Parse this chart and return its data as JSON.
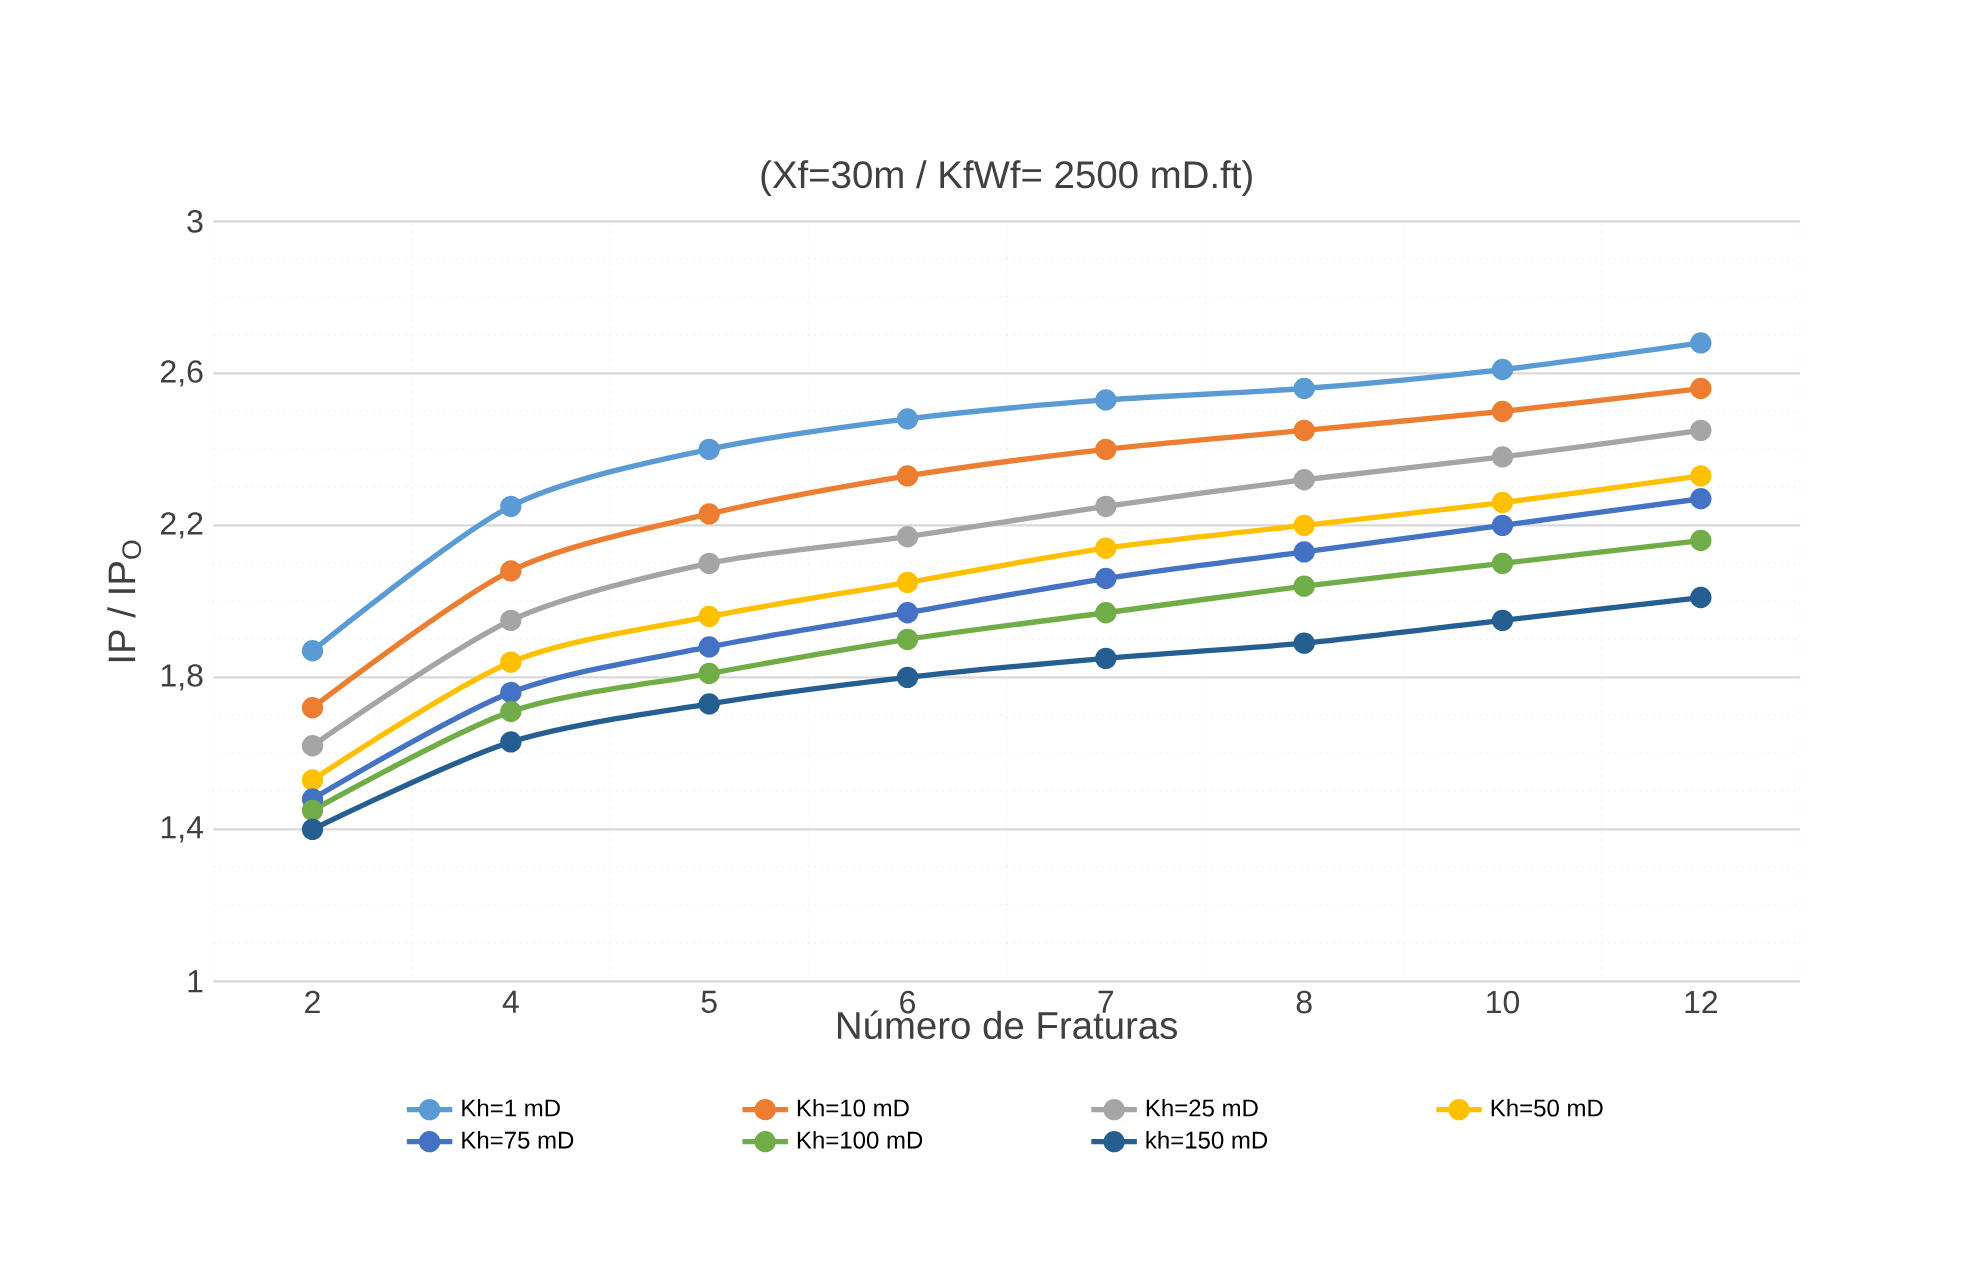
{
  "chart_data": {
    "type": "line",
    "title": "(Xf=30m / KfWf= 2500 mD.ft)",
    "xlabel": "Número de Fraturas",
    "ylabel": "IP / IP$_{O}$",
    "categories": [
      "2",
      "4",
      "5",
      "6",
      "7",
      "8",
      "10",
      "12"
    ],
    "ylim": [
      1,
      3
    ],
    "yticks": [
      1,
      {
        "value": 1.4,
        "label": "1,4"
      },
      {
        "value": 1.8,
        "label": "1,8"
      },
      {
        "value": 2.2,
        "label": "2,2"
      },
      {
        "value": 2.6,
        "label": "2,6"
      },
      3
    ],
    "grid": true,
    "legend": "bottom",
    "marker": "circle",
    "line_style": "solid",
    "series": [
      {
        "name": "Kh=1 mD",
        "color": "#5b9bd5",
        "values": [
          1.87,
          2.25,
          2.4,
          2.48,
          2.53,
          2.56,
          2.61,
          2.68
        ]
      },
      {
        "name": "Kh=10 mD",
        "color": "#ed7d31",
        "values": [
          1.72,
          2.08,
          2.23,
          2.33,
          2.4,
          2.45,
          2.5,
          2.56
        ]
      },
      {
        "name": "Kh=25 mD",
        "color": "#a5a5a5",
        "values": [
          1.62,
          1.95,
          2.1,
          2.17,
          2.25,
          2.32,
          2.38,
          2.45
        ]
      },
      {
        "name": "Kh=50 mD",
        "color": "#ffc000",
        "values": [
          1.53,
          1.84,
          1.96,
          2.05,
          2.14,
          2.2,
          2.26,
          2.33
        ]
      },
      {
        "name": "Kh=75 mD",
        "color": "#4472c4",
        "values": [
          1.48,
          1.76,
          1.88,
          1.97,
          2.06,
          2.13,
          2.2,
          2.27
        ]
      },
      {
        "name": "Kh=100 mD",
        "color": "#70ad47",
        "values": [
          1.45,
          1.71,
          1.81,
          1.9,
          1.97,
          2.04,
          2.1,
          2.16
        ]
      },
      {
        "name": "kh=150 mD",
        "color": "#255e91",
        "values": [
          1.4,
          1.63,
          1.73,
          1.8,
          1.85,
          1.89,
          1.95,
          2.01
        ]
      }
    ]
  }
}
